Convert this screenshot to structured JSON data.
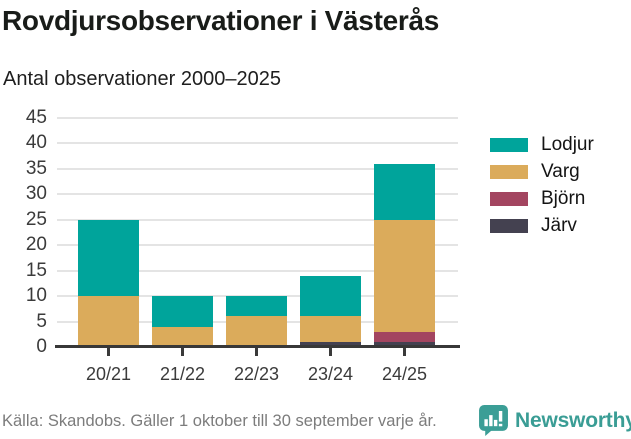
{
  "chart_data": {
    "type": "bar",
    "stacked": true,
    "title": "Rovdjursobservationer i Västerås",
    "subtitle": "Antal observationer 2000–2025",
    "categories": [
      "20/21",
      "21/22",
      "22/23",
      "23/24",
      "24/25"
    ],
    "series": [
      {
        "name": "Lodjur",
        "color": "#00A49B",
        "values": [
          15,
          6,
          4,
          8,
          11
        ]
      },
      {
        "name": "Varg",
        "color": "#DBAB5B",
        "values": [
          10,
          4,
          6,
          5,
          22
        ]
      },
      {
        "name": "Björn",
        "color": "#A34560",
        "values": [
          0,
          0,
          0,
          0,
          2
        ]
      },
      {
        "name": "Järv",
        "color": "#444150",
        "values": [
          0,
          0,
          0,
          1,
          1
        ]
      }
    ],
    "stack_order_bottom_to_top": [
      "Järv",
      "Björn",
      "Varg",
      "Lodjur"
    ],
    "bar_totals": [
      25,
      10,
      10,
      14,
      36
    ],
    "yticks": [
      0,
      5,
      10,
      15,
      20,
      25,
      30,
      35,
      40,
      45
    ],
    "ylim": [
      0,
      45
    ],
    "xlabel": "",
    "ylabel": "",
    "grid": "horizontal",
    "legend_position": "right"
  },
  "footer": {
    "source": "Källa: Skandobs. Gäller 1 oktober till 30 september varje år.",
    "logo_text": "Newsworthy",
    "logo_color": "#3A9D95"
  },
  "colors": {
    "background": "#FFFFFF",
    "gridline": "#E4E4E4",
    "axis_line": "#383838",
    "tick_label": "#3B3B3B",
    "title_text": "#191C19",
    "source_text": "#7C7C7C"
  }
}
